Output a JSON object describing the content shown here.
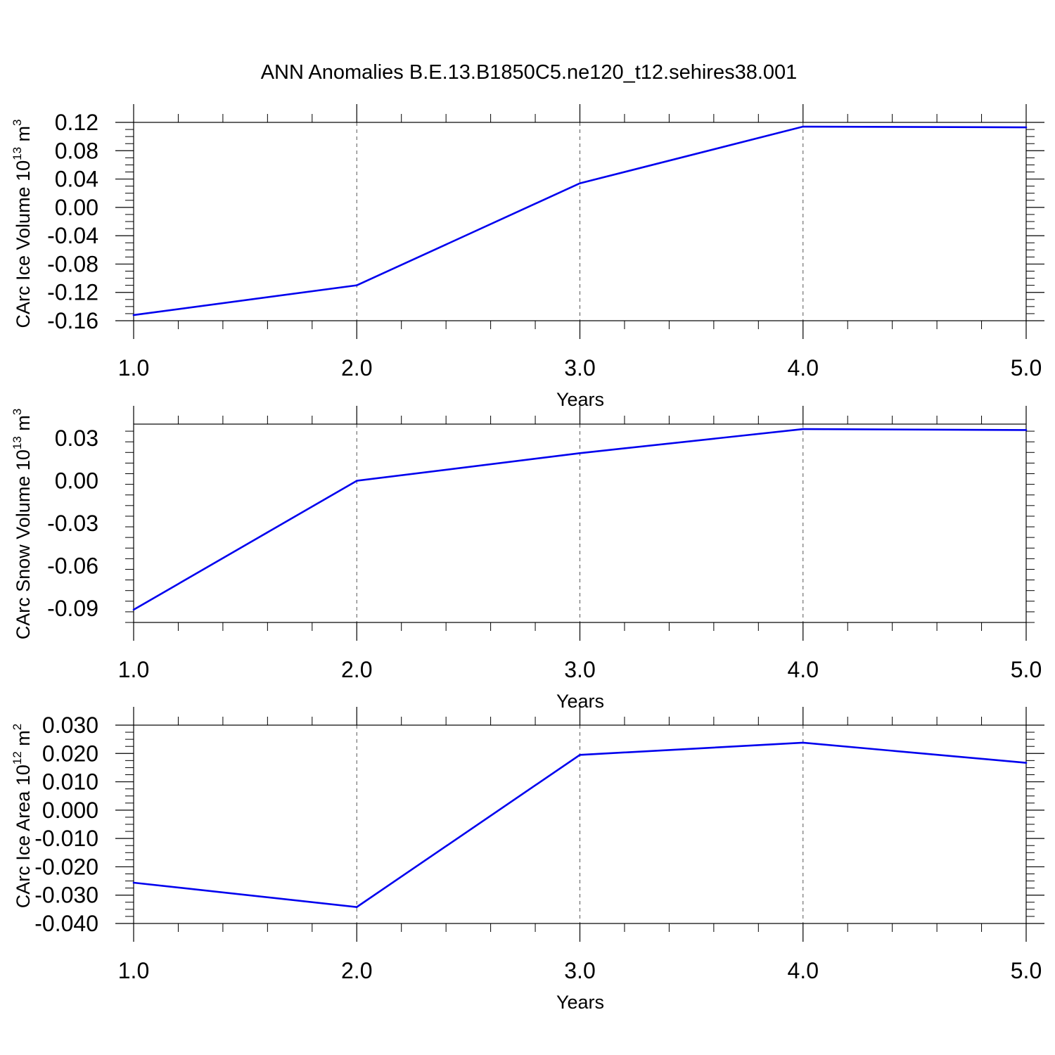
{
  "figure": {
    "title": "ANN Anomalies B.E.13.B1850C5.ne120_t12.sehires38.001"
  },
  "chart_data": [
    {
      "type": "line",
      "title": "",
      "ylabel": "CArc Ice Volume 10",
      "ylabel_exp": "13",
      "ylabel_unit": "m",
      "ylabel_unit_exp": "3",
      "xlabel": "Years",
      "x": [
        1.0,
        2.0,
        3.0,
        4.0,
        5.0
      ],
      "xticks": [
        "1.0",
        "2.0",
        "3.0",
        "4.0",
        "5.0"
      ],
      "xlim": [
        1.0,
        5.0
      ],
      "ylim": [
        -0.16,
        0.12
      ],
      "yticks": [
        "0.12",
        "0.08",
        "0.04",
        "0.00",
        "-0.04",
        "-0.08",
        "-0.12",
        "-0.16"
      ],
      "ytick_values": [
        0.12,
        0.08,
        0.04,
        0.0,
        -0.04,
        -0.08,
        -0.12,
        -0.16
      ],
      "series": [
        {
          "values": [
            -0.152,
            -0.11,
            0.034,
            0.114,
            0.113
          ],
          "color": "#0000ee"
        }
      ],
      "grid": "vertical dashed at major x ticks"
    },
    {
      "type": "line",
      "title": "",
      "ylabel": "CArc Snow Volume 10",
      "ylabel_exp": "13",
      "ylabel_unit": "m",
      "ylabel_unit_exp": "3",
      "xlabel": "Years",
      "x": [
        1.0,
        2.0,
        3.0,
        4.0,
        5.0
      ],
      "xticks": [
        "1.0",
        "2.0",
        "3.0",
        "4.0",
        "5.0"
      ],
      "xlim": [
        1.0,
        5.0
      ],
      "ylim": [
        -0.1,
        0.04
      ],
      "yticks": [
        "0.03",
        "0.00",
        "-0.03",
        "-0.06",
        "-0.09"
      ],
      "ytick_values": [
        0.03,
        0.0,
        -0.03,
        -0.06,
        -0.09
      ],
      "series": [
        {
          "values": [
            -0.091,
            0.0,
            0.0195,
            0.0365,
            0.0358
          ],
          "color": "#0000ee"
        }
      ],
      "grid": "vertical dashed at major x ticks"
    },
    {
      "type": "line",
      "title": "",
      "ylabel": "CArc Ice Area 10",
      "ylabel_exp": "12",
      "ylabel_unit": "m",
      "ylabel_unit_exp": "2",
      "xlabel": "Years",
      "x": [
        1.0,
        2.0,
        3.0,
        4.0,
        5.0
      ],
      "xticks": [
        "1.0",
        "2.0",
        "3.0",
        "4.0",
        "5.0"
      ],
      "xlim": [
        1.0,
        5.0
      ],
      "ylim": [
        -0.04,
        0.03
      ],
      "yticks": [
        "0.030",
        "0.020",
        "0.010",
        "0.000",
        "-0.010",
        "-0.020",
        "-0.030",
        "-0.040"
      ],
      "ytick_values": [
        0.03,
        0.02,
        0.01,
        0.0,
        -0.01,
        -0.02,
        -0.03,
        -0.04
      ],
      "series": [
        {
          "values": [
            -0.0256,
            -0.0342,
            0.0195,
            0.0238,
            0.0167
          ],
          "color": "#0000ee"
        }
      ],
      "grid": "vertical dashed at major x ticks"
    }
  ]
}
